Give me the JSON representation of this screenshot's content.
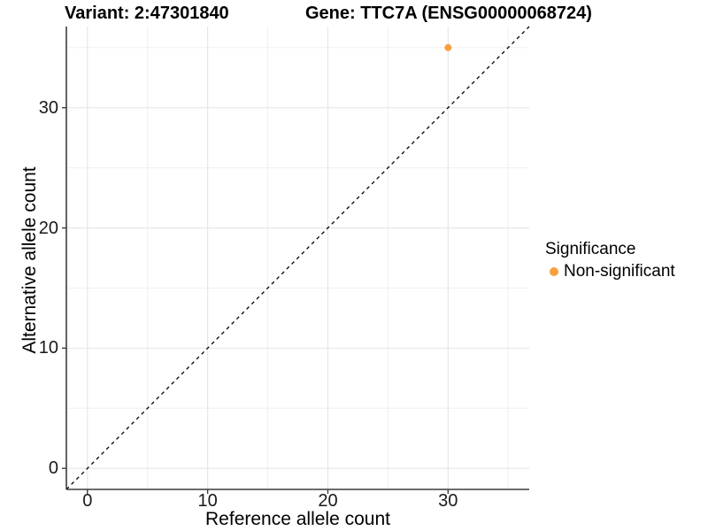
{
  "chart_data": {
    "type": "scatter",
    "title_variant": "Variant: 2:47301840",
    "title_gene": "Gene: TTC7A (ENSG00000068724)",
    "xlabel": "Reference allele count",
    "ylabel": "Alternative allele count",
    "xlim": [
      -1.75,
      36.75
    ],
    "ylim": [
      -1.75,
      36.75
    ],
    "xticks": [
      0,
      10,
      20,
      30
    ],
    "yticks": [
      0,
      10,
      20,
      30
    ],
    "xticks_minor": [
      5,
      15,
      25,
      35
    ],
    "yticks_minor": [
      5,
      15,
      25,
      35
    ],
    "grid": "major+minor",
    "series": [
      {
        "name": "Non-significant",
        "color": "#F9A03F",
        "points": [
          {
            "x": 30,
            "y": 35
          }
        ]
      }
    ],
    "reference_line": {
      "kind": "abline",
      "slope": 1,
      "intercept": 0,
      "linestyle": "dashed",
      "color": "#000000"
    },
    "legend": {
      "title": "Significance",
      "position": "right",
      "entries": [
        {
          "label": "Non-significant",
          "color": "#F9A03F"
        }
      ]
    }
  },
  "colors": {
    "background": "#FFFFFF",
    "grid_major": "#E5E5E5",
    "grid_minor": "#F0F0F0",
    "axis_line": "#3C3C3C",
    "tick_mark": "#3C3C3C",
    "text": "#000000",
    "point": "#F9A03F"
  }
}
